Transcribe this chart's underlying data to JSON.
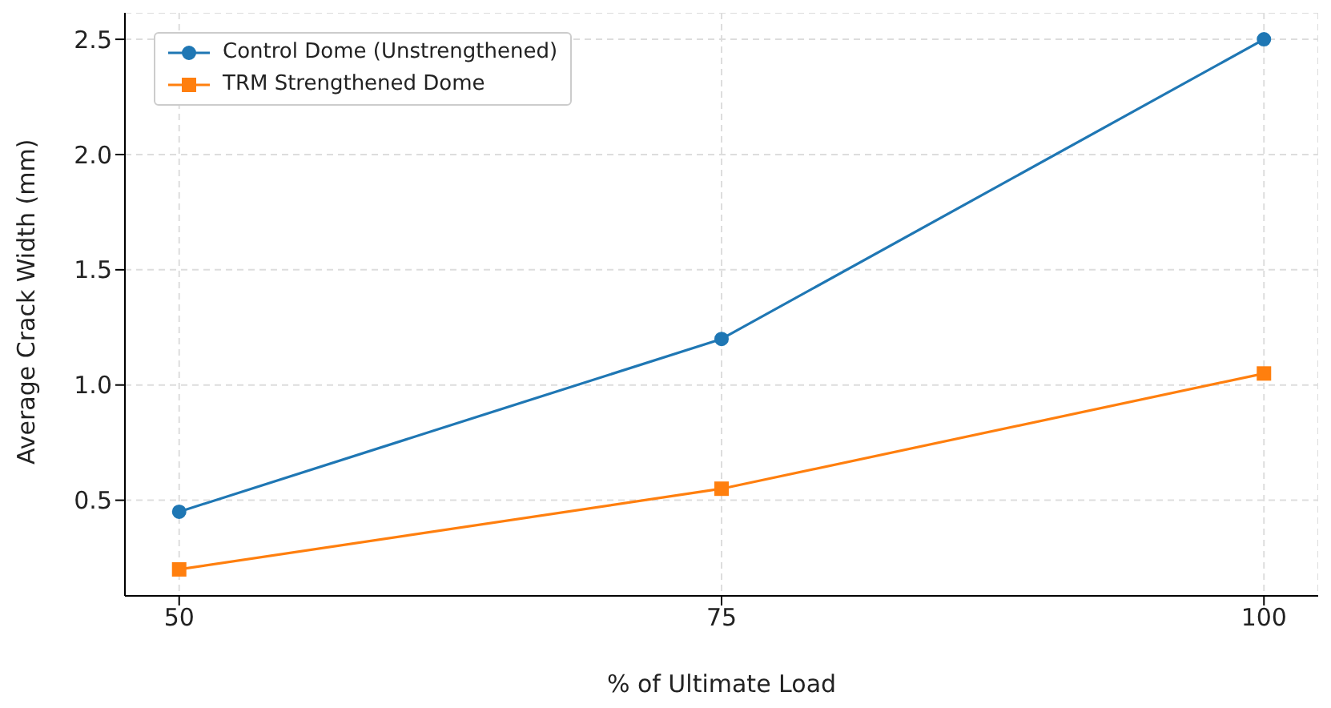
{
  "chart_data": {
    "type": "line",
    "xlabel": "% of Ultimate Load",
    "ylabel": "Average Crack Width (mm)",
    "x": [
      50,
      75,
      100
    ],
    "series": [
      {
        "name": "Control Dome (Unstrengthened)",
        "color": "#1f77b4",
        "values": [
          0.45,
          1.2,
          2.5
        ],
        "marker": "circle"
      },
      {
        "name": "TRM Strengthened Dome",
        "color": "#ff7f0e",
        "values": [
          0.2,
          0.55,
          1.05
        ],
        "marker": "square"
      }
    ],
    "xlim": [
      47.5,
      102.5
    ],
    "xticks": [
      50,
      75,
      100
    ],
    "ylim": [
      0.085,
      2.615
    ],
    "yticks": [
      {
        "value": 0.5,
        "label": "0.5"
      },
      {
        "value": 1.0,
        "label": "1.0"
      },
      {
        "value": 1.5,
        "label": "1.5"
      },
      {
        "value": 2.0,
        "label": "2.0"
      },
      {
        "value": 2.5,
        "label": "2.5"
      }
    ],
    "grid": true,
    "legend": "top left",
    "line_style": "solid"
  }
}
